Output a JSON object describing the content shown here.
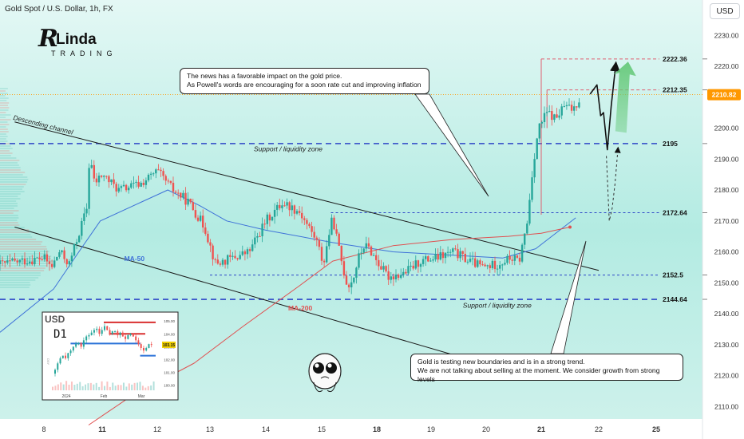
{
  "header": {
    "title": "Gold Spot / U.S. Dollar, 1h, FX",
    "currency_button": "USD"
  },
  "logo": {
    "line1": "Linda",
    "line2": "TRADING"
  },
  "colors": {
    "bg_top": "#dff6f4",
    "bg_mid": "#b6ebe3",
    "up": "#26a69a",
    "down": "#ef5350",
    "ma50": "#3f72d8",
    "ma200": "#e05050",
    "levels": "#2d46c7",
    "resist": "#e06070",
    "price_tag": "#ff9800",
    "arrow_green": "#66c97a"
  },
  "chart_data": {
    "type": "candlestick",
    "symbol": "Gold Spot / U.S. Dollar",
    "timeframe": "1h",
    "ylim": [
      2104,
      2236
    ],
    "y_ticks": [
      2110,
      2120,
      2130,
      2140,
      2150,
      2160,
      2170,
      2180,
      2190,
      2200,
      2210,
      2220,
      2230
    ],
    "x_ticks": [
      {
        "label": "8",
        "day": 8
      },
      {
        "label": "11",
        "day": 11
      },
      {
        "label": "12",
        "day": 12
      },
      {
        "label": "13",
        "day": 13
      },
      {
        "label": "14",
        "day": 14
      },
      {
        "label": "15",
        "day": 15
      },
      {
        "label": "18",
        "day": 18
      },
      {
        "label": "19",
        "day": 19
      },
      {
        "label": "20",
        "day": 20
      },
      {
        "label": "21",
        "day": 21
      },
      {
        "label": "22",
        "day": 22
      },
      {
        "label": "25",
        "day": 25
      }
    ],
    "x_bold": [
      "11",
      "18",
      "21",
      "25"
    ],
    "current_price": 2210.82,
    "current_price_label": "2210.82",
    "levels": [
      {
        "label": "2222.36",
        "value": 2222.36,
        "style": "red-dash",
        "from_day": 21.0
      },
      {
        "label": "2212.35",
        "value": 2212.35,
        "style": "red-dash",
        "from_day": 21.1
      },
      {
        "label": "2195",
        "value": 2195,
        "style": "blue-dash",
        "from_day": 7.7
      },
      {
        "label": "2172.64",
        "value": 2172.64,
        "style": "blue-dot",
        "from_day": 15.5
      },
      {
        "label": "2152.5",
        "value": 2152.5,
        "style": "blue-dot",
        "from_day": 13.0
      },
      {
        "label": "2144.64",
        "value": 2144.64,
        "style": "blue-dash",
        "from_day": 7.7
      }
    ],
    "zone_labels": [
      {
        "text": "Support / liquidity zone",
        "day": 14.4,
        "value": 2192.5
      },
      {
        "text": "Support / liquidity zone",
        "day": 20.2,
        "value": 2142
      }
    ],
    "channel": {
      "label": "Descending channel",
      "upper": [
        {
          "day": 7.8,
          "v": 2202
        },
        {
          "day": 22.0,
          "v": 2154
        }
      ],
      "lower": [
        {
          "day": 7.8,
          "v": 2168
        },
        {
          "day": 20.5,
          "v": 2121
        }
      ]
    },
    "ma_labels": [
      {
        "text": "MA-50",
        "day": 11.4,
        "value": 2157
      },
      {
        "text": "MA-200",
        "day": 14.4,
        "value": 2141
      }
    ],
    "ma50": [
      {
        "day": 7.7,
        "v": 2134
      },
      {
        "day": 8.5,
        "v": 2148
      },
      {
        "day": 9.8,
        "v": 2160
      },
      {
        "day": 10.9,
        "v": 2170
      },
      {
        "day": 11.7,
        "v": 2176
      },
      {
        "day": 12.2,
        "v": 2180
      },
      {
        "day": 12.8,
        "v": 2175
      },
      {
        "day": 13.3,
        "v": 2170
      },
      {
        "day": 14.0,
        "v": 2167
      },
      {
        "day": 14.9,
        "v": 2164
      },
      {
        "day": 15.6,
        "v": 2163
      },
      {
        "day": 18.3,
        "v": 2160
      },
      {
        "day": 19.3,
        "v": 2159
      },
      {
        "day": 20.3,
        "v": 2158
      },
      {
        "day": 20.9,
        "v": 2161
      },
      {
        "day": 21.6,
        "v": 2171
      }
    ],
    "ma200": [
      {
        "day": 10.3,
        "v": 2104
      },
      {
        "day": 11.5,
        "v": 2113
      },
      {
        "day": 12.7,
        "v": 2124
      },
      {
        "day": 13.6,
        "v": 2136
      },
      {
        "day": 14.6,
        "v": 2149
      },
      {
        "day": 15.6,
        "v": 2157
      },
      {
        "day": 18.3,
        "v": 2162
      },
      {
        "day": 19.4,
        "v": 2164
      },
      {
        "day": 20.4,
        "v": 2165
      },
      {
        "day": 21.0,
        "v": 2166
      },
      {
        "day": 21.5,
        "v": 2168
      }
    ],
    "price_path": [
      {
        "day": 7.7,
        "v": 2156
      },
      {
        "day": 8.0,
        "v": 2158
      },
      {
        "day": 8.4,
        "v": 2155
      },
      {
        "day": 8.8,
        "v": 2160
      },
      {
        "day": 9.3,
        "v": 2156
      },
      {
        "day": 9.9,
        "v": 2168
      },
      {
        "day": 10.25,
        "v": 2175
      },
      {
        "day": 10.35,
        "v": 2192
      },
      {
        "day": 10.6,
        "v": 2182
      },
      {
        "day": 11.0,
        "v": 2185
      },
      {
        "day": 11.3,
        "v": 2180
      },
      {
        "day": 11.7,
        "v": 2182
      },
      {
        "day": 12.0,
        "v": 2186
      },
      {
        "day": 12.3,
        "v": 2180
      },
      {
        "day": 12.6,
        "v": 2176
      },
      {
        "day": 12.9,
        "v": 2168
      },
      {
        "day": 13.1,
        "v": 2156
      },
      {
        "day": 13.4,
        "v": 2158
      },
      {
        "day": 13.7,
        "v": 2160
      },
      {
        "day": 14.0,
        "v": 2170
      },
      {
        "day": 14.3,
        "v": 2176
      },
      {
        "day": 14.6,
        "v": 2173
      },
      {
        "day": 14.9,
        "v": 2164
      },
      {
        "day": 15.1,
        "v": 2156
      },
      {
        "day": 15.4,
        "v": 2166
      },
      {
        "day": 15.6,
        "v": 2171
      },
      {
        "day": 15.9,
        "v": 2162
      },
      {
        "day": 16.15,
        "v": 2155
      },
      {
        "day": 16.4,
        "v": 2149
      },
      {
        "day": 16.7,
        "v": 2151
      },
      {
        "day": 17.0,
        "v": 2158
      },
      {
        "day": 17.3,
        "v": 2162
      },
      {
        "day": 17.6,
        "v": 2161
      },
      {
        "day": 17.9,
        "v": 2158
      },
      {
        "day": 18.2,
        "v": 2152
      },
      {
        "day": 18.5,
        "v": 2153
      },
      {
        "day": 18.8,
        "v": 2157
      },
      {
        "day": 19.1,
        "v": 2158
      },
      {
        "day": 19.4,
        "v": 2160
      },
      {
        "day": 19.7,
        "v": 2157
      },
      {
        "day": 19.95,
        "v": 2155
      },
      {
        "day": 20.2,
        "v": 2156
      },
      {
        "day": 20.45,
        "v": 2158
      },
      {
        "day": 20.6,
        "v": 2157
      },
      {
        "day": 20.75,
        "v": 2170
      },
      {
        "day": 20.85,
        "v": 2188
      },
      {
        "day": 20.95,
        "v": 2200
      },
      {
        "day": 21.1,
        "v": 2205
      },
      {
        "day": 21.25,
        "v": 2203
      },
      {
        "day": 21.4,
        "v": 2207
      },
      {
        "day": 21.55,
        "v": 2206
      },
      {
        "day": 21.7,
        "v": 2210.82
      }
    ],
    "forecast_solid": [
      {
        "day": 21.85,
        "v": 2211
      },
      {
        "day": 21.97,
        "v": 2214
      },
      {
        "day": 22.1,
        "v": 2204
      },
      {
        "day": 22.25,
        "v": 2205
      },
      {
        "day": 22.45,
        "v": 2193
      },
      {
        "day": 22.65,
        "v": 2207
      },
      {
        "day": 22.88,
        "v": 2220
      }
    ],
    "forecast_dashed": [
      {
        "day": 22.4,
        "v": 2191
      },
      {
        "day": 22.55,
        "v": 2170
      },
      {
        "day": 22.7,
        "v": 2174
      },
      {
        "day": 22.85,
        "v": 2182
      },
      {
        "day": 23.0,
        "v": 2193
      }
    ],
    "inset": {
      "title": "USD",
      "timeframe": "D1",
      "x_labels": [
        "2024",
        "Feb",
        "Mar"
      ],
      "y_labels": [
        "105.00",
        "104.00",
        "103.00",
        "102.00",
        "101.00",
        "100.00"
      ],
      "y_range": [
        99.6,
        105.2
      ],
      "price_tag": "103.15",
      "axis_caption": "DXY",
      "closes": [
        101.2,
        101.7,
        102.1,
        102.3,
        102.1,
        102.5,
        102.7,
        103.0,
        103.2,
        103.3,
        103.0,
        103.5,
        103.8,
        103.9,
        104.1,
        104.3,
        104.4,
        104.0,
        104.3,
        104.6,
        104.3,
        104.0,
        104.2,
        104.2,
        103.9,
        104.1,
        103.8,
        103.6,
        103.9,
        104.0,
        103.8,
        103.5,
        103.2,
        102.9,
        102.7,
        102.9,
        103.2,
        103.15
      ],
      "red_levels": [
        {
          "value": 104.9,
          "from": 0.5,
          "to": 1.0
        },
        {
          "value": 104.0,
          "from": 0.55,
          "to": 0.9
        }
      ],
      "blue_levels": [
        {
          "value": 103.25,
          "from": 0.18,
          "to": 0.85
        },
        {
          "value": 102.3,
          "from": 0.85,
          "to": 1.0
        }
      ]
    }
  },
  "annotations": {
    "news_line1": "The news has a favorable impact on the gold price.",
    "news_line2": "As Powell's words are encouraging for a soon rate cut and improving inflation",
    "trend_line1": "Gold is testing new boundaries and is in a strong trend.",
    "trend_line2": "We are not talking about selling at the moment. We consider growth from strong levels"
  }
}
